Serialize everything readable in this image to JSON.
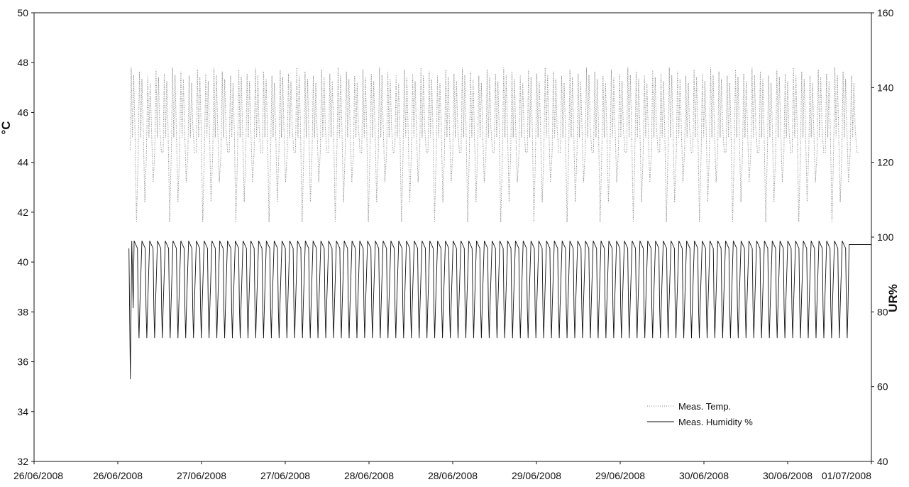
{
  "chart_data": {
    "type": "line",
    "title": "",
    "xlabel": "",
    "ylabel_left": "°C",
    "ylabel_right": "UR%",
    "x_tick_labels": [
      "26/06/2008",
      "26/06/2008",
      "27/06/2008",
      "27/06/2008",
      "28/06/2008",
      "28/06/2008",
      "29/06/2008",
      "29/06/2008",
      "30/06/2008",
      "30/06/2008",
      "01/07/2008"
    ],
    "y_left": {
      "min": 32,
      "max": 50,
      "ticks": [
        32,
        34,
        36,
        38,
        40,
        42,
        44,
        46,
        48,
        50
      ]
    },
    "y_right": {
      "min": 40,
      "max": 160,
      "ticks": [
        40,
        60,
        80,
        100,
        120,
        140,
        160
      ]
    },
    "grid": false,
    "legend_position": "bottom-right",
    "series_color": {
      "temperature": "#888888",
      "humidity": "#111111"
    },
    "series": [
      {
        "name": "Meas. Temp.",
        "axis": "left",
        "style": "dotted",
        "start_fraction": 0.115,
        "end_fraction": 0.985,
        "cycles": 88,
        "upper_band": [
          45.0,
          47.8
        ],
        "lower_values": [
          41.6,
          42.4,
          43.2,
          44.4
        ],
        "start_value": 44.5
      },
      {
        "name": "Meas. Humidity %",
        "axis": "right",
        "style": "solid",
        "start_fraction": 0.115,
        "end_fraction": 0.97,
        "cycles": 92,
        "max": 99,
        "plateau": 97,
        "shoulder": 81,
        "min": 73,
        "initial_dip": 62,
        "end_value": 98
      }
    ]
  }
}
